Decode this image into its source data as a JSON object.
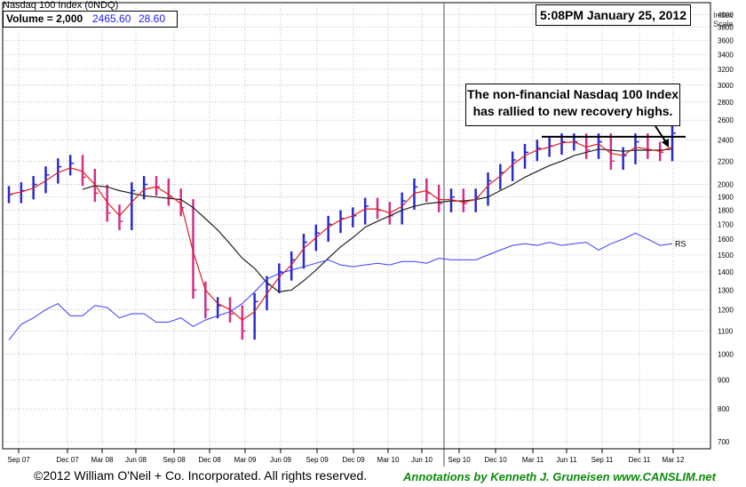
{
  "header": {
    "index_title": "Nasdaq 100 Index  (0NDQ)",
    "volume_label": "Volume =",
    "volume_value": "2,000",
    "last_price": "2465.60",
    "change": "28.60",
    "timestamp": "5:08PM January 25, 2012",
    "index_scale_label": [
      "Index",
      "Scale"
    ]
  },
  "annotation": {
    "line1": "The non-financial Nasdaq 100 Index",
    "line2": "has rallied to new recovery highs."
  },
  "footer": {
    "copyright": "©2012 William O'Neil + Co. Incorporated. All rights reserved.",
    "credit": "Annotations by Kenneth J. Gruneisen www.CANSLIM.net"
  },
  "colors": {
    "up_bar": "#2a2acf",
    "down_bar": "#d0308a",
    "short_ma": "#e02020",
    "long_ma": "#222222",
    "rs_line": "#3a3aff",
    "grid": "#9a9a9a",
    "resistance": "#000000"
  },
  "chart_data": {
    "type": "line",
    "title": "Nasdaq 100 Index (0NDQ)",
    "scale": "log",
    "ylim": [
      680,
      4200
    ],
    "yticks": [
      700,
      800,
      900,
      1000,
      1100,
      1200,
      1300,
      1400,
      1500,
      1600,
      1700,
      1800,
      1900,
      2000,
      2200,
      2400,
      2600,
      2800,
      3000,
      3200,
      3400,
      3600,
      3800,
      4000
    ],
    "xtick_labels": [
      "Sep 07",
      "Dec 07",
      "Mar 08",
      "Jun 08",
      "Sep 08",
      "Dec 08",
      "Mar 09",
      "Jun 09",
      "Sep 09",
      "Dec 09",
      "Mar 10",
      "Jun 10",
      "Sep 10",
      "Dec 10",
      "Mar 11",
      "Jun 11",
      "Sep 11",
      "Dec 11",
      "Mar 12"
    ],
    "x": [
      "2007-07",
      "2007-08",
      "2007-09",
      "2007-10",
      "2007-11",
      "2007-12",
      "2008-01",
      "2008-02",
      "2008-03",
      "2008-04",
      "2008-05",
      "2008-06",
      "2008-07",
      "2008-08",
      "2008-09",
      "2008-10",
      "2008-11",
      "2008-12",
      "2009-01",
      "2009-02",
      "2009-03",
      "2009-04",
      "2009-05",
      "2009-06",
      "2009-07",
      "2009-08",
      "2009-09",
      "2009-10",
      "2009-11",
      "2009-12",
      "2010-01",
      "2010-02",
      "2010-03",
      "2010-04",
      "2010-05",
      "2010-06",
      "2010-07",
      "2010-08",
      "2010-09",
      "2010-10",
      "2010-11",
      "2010-12",
      "2011-01",
      "2011-02",
      "2011-03",
      "2011-04",
      "2011-05",
      "2011-06",
      "2011-07",
      "2011-08",
      "2011-09",
      "2011-10",
      "2011-11",
      "2011-12",
      "2012-01"
    ],
    "series": [
      {
        "values": [
          1920,
          1950,
          2000,
          2080,
          2150,
          2180,
          2060,
          1930,
          1780,
          1720,
          1950,
          2000,
          1980,
          1900,
          1820,
          1300,
          1200,
          1220,
          1180,
          1100,
          1240,
          1330,
          1400,
          1470,
          1580,
          1640,
          1700,
          1740,
          1760,
          1830,
          1800,
          1760,
          1870,
          1980,
          1930,
          1850,
          1900,
          1850,
          1900,
          2030,
          2100,
          2210,
          2280,
          2320,
          2340,
          2380,
          2380,
          2300,
          2380,
          2200,
          2250,
          2380,
          2300,
          2280,
          2465
        ]
      },
      {
        "values": [
          1920,
          1940,
          1970,
          2030,
          2100,
          2140,
          2110,
          2000,
          1860,
          1760,
          1860,
          1960,
          1980,
          1920,
          1850,
          1520,
          1300,
          1230,
          1200,
          1150,
          1190,
          1280,
          1370,
          1440,
          1540,
          1610,
          1680,
          1730,
          1760,
          1810,
          1810,
          1780,
          1830,
          1930,
          1950,
          1880,
          1880,
          1860,
          1880,
          1990,
          2070,
          2170,
          2250,
          2300,
          2330,
          2370,
          2380,
          2330,
          2360,
          2270,
          2250,
          2330,
          2310,
          2290,
          2330
        ]
      },
      {
        "values": [
          null,
          null,
          null,
          null,
          null,
          null,
          1960,
          1990,
          1980,
          1950,
          1930,
          1910,
          1900,
          1890,
          1880,
          1820,
          1740,
          1660,
          1570,
          1480,
          1420,
          1340,
          1290,
          1300,
          1350,
          1410,
          1480,
          1550,
          1610,
          1680,
          1720,
          1760,
          1800,
          1830,
          1850,
          1860,
          1870,
          1870,
          1880,
          1900,
          1950,
          2000,
          2060,
          2110,
          2160,
          2200,
          2250,
          2280,
          2310,
          2300,
          2290,
          2300,
          2300,
          2300,
          2310
        ]
      },
      {
        "name": "RS",
        "values": [
          1060,
          1130,
          1160,
          1200,
          1230,
          1170,
          1170,
          1220,
          1210,
          1160,
          1180,
          1180,
          1140,
          1140,
          1160,
          1120,
          1150,
          1170,
          1190,
          1230,
          1290,
          1360,
          1390,
          1410,
          1430,
          1450,
          1470,
          1440,
          1430,
          1440,
          1450,
          1440,
          1460,
          1460,
          1450,
          1480,
          1470,
          1470,
          1470,
          1500,
          1530,
          1560,
          1570,
          1560,
          1580,
          1560,
          1570,
          1580,
          1530,
          1570,
          1600,
          1640,
          1600,
          1560,
          1570
        ]
      }
    ],
    "resistance_level": 2430,
    "grid": true
  }
}
